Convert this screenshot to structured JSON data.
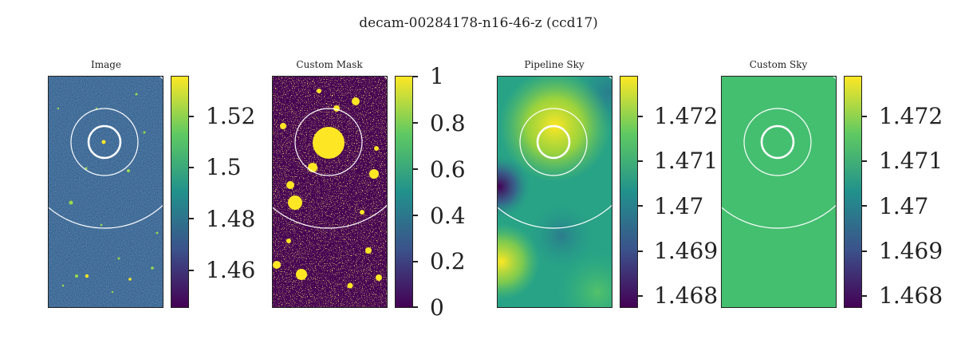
{
  "figure_title": "decam-00284178-n16-46-z (ccd17)",
  "panels": [
    {
      "title": "Image",
      "colorbar_ticks": [
        "1.52",
        "1.5",
        "1.48",
        "1.46"
      ],
      "colormap": "viridis"
    },
    {
      "title": "Custom Mask",
      "colorbar_ticks": [
        "1",
        "0.8",
        "0.6",
        "0.4",
        "0.2",
        "0"
      ],
      "colormap": "viridis"
    },
    {
      "title": "Pipeline Sky",
      "colorbar_ticks": [
        "1.472",
        "1.471",
        "1.47",
        "1.469",
        "1.468"
      ],
      "colormap": "viridis"
    },
    {
      "title": "Custom Sky",
      "colorbar_ticks": [
        "1.472",
        "1.471",
        "1.47",
        "1.469",
        "1.468"
      ],
      "colormap": "viridis"
    }
  ],
  "colors": {
    "viridis_low": "#440154",
    "viridis_mid": "#21918c",
    "viridis_high": "#fde725",
    "uniform_sky": "#44bf70"
  }
}
